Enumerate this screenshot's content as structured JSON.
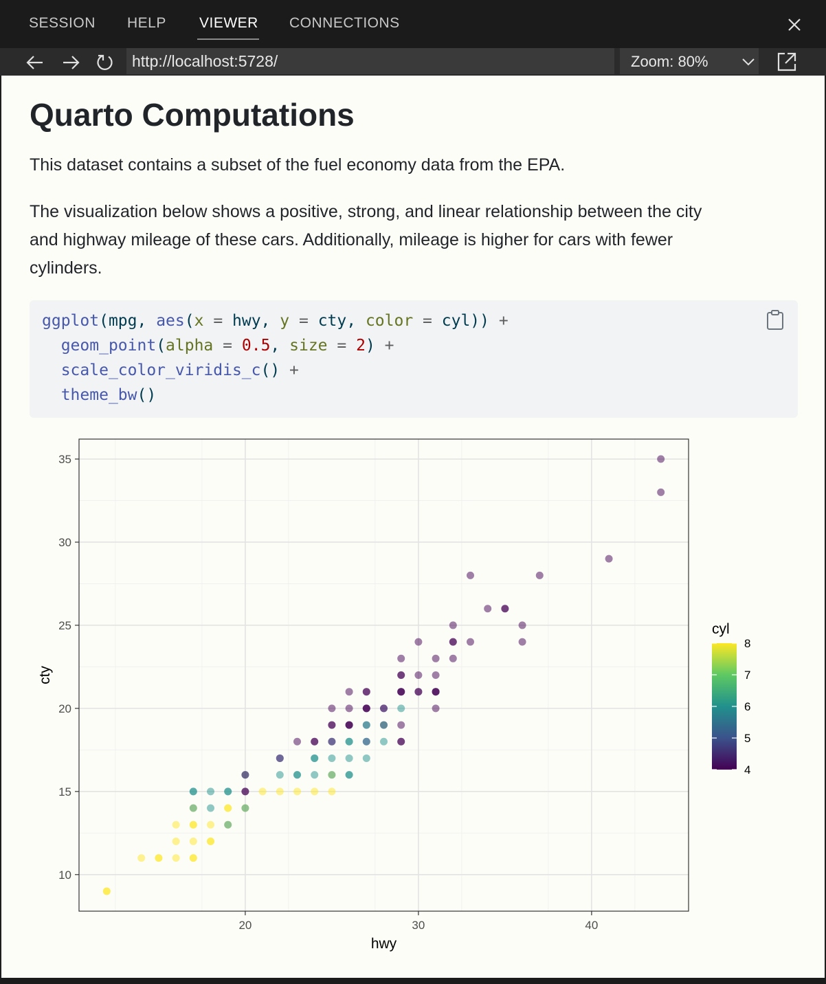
{
  "tabs": [
    {
      "label": "SESSION",
      "active": false
    },
    {
      "label": "HELP",
      "active": false
    },
    {
      "label": "VIEWER",
      "active": true
    },
    {
      "label": "CONNECTIONS",
      "active": false
    }
  ],
  "toolbar": {
    "url": "http://localhost:5728/",
    "zoom": "Zoom: 80%"
  },
  "page": {
    "title": "Quarto Computations",
    "para1": "This dataset contains a subset of the fuel economy data from the EPA.",
    "para2_lines": [
      "The visualization below shows a positive, strong, and linear relationship between the city",
      "and highway mileage of these cars. Additionally, mileage is higher for cars with fewer",
      "cylinders."
    ]
  },
  "code_lines": [
    "ggplot(mpg, aes(x = hwy, y = cty, color = cyl)) +",
    "  geom_point(alpha = 0.5, size = 2) +",
    "  scale_color_viridis_c() +",
    "  theme_bw()"
  ],
  "icons": {
    "close": "close-icon",
    "back": "arrow-left-icon",
    "forward": "arrow-right-icon",
    "refresh": "refresh-icon",
    "zoom_chevron": "chevron-down-icon",
    "popout": "external-link-icon",
    "copy": "clipboard-icon"
  },
  "chart_data": {
    "type": "scatter",
    "xlabel": "hwy",
    "ylabel": "cty",
    "xlim": [
      10.4,
      45.6
    ],
    "ylim": [
      7.8,
      36.2
    ],
    "x_ticks": [
      20,
      30,
      40
    ],
    "y_ticks": [
      10,
      15,
      20,
      25,
      30,
      35
    ],
    "grid": true,
    "legend": {
      "title": "cyl",
      "type": "colorbar",
      "palette": "viridis",
      "ticks": [
        4,
        5,
        6,
        7,
        8
      ],
      "position": "right"
    },
    "points": [
      {
        "x": 44,
        "y": 35,
        "cyl": 4
      },
      {
        "x": 44,
        "y": 33,
        "cyl": 4
      },
      {
        "x": 41,
        "y": 29,
        "cyl": 4
      },
      {
        "x": 33,
        "y": 28,
        "cyl": 4
      },
      {
        "x": 37,
        "y": 28,
        "cyl": 4
      },
      {
        "x": 34,
        "y": 26,
        "cyl": 4
      },
      {
        "x": 35,
        "y": 26,
        "cyl": 4
      },
      {
        "x": 35,
        "y": 26,
        "cyl": 4
      },
      {
        "x": 32,
        "y": 25,
        "cyl": 4
      },
      {
        "x": 36,
        "y": 25,
        "cyl": 4
      },
      {
        "x": 30,
        "y": 24,
        "cyl": 4
      },
      {
        "x": 32,
        "y": 24,
        "cyl": 4
      },
      {
        "x": 32,
        "y": 24,
        "cyl": 4
      },
      {
        "x": 33,
        "y": 24,
        "cyl": 4
      },
      {
        "x": 36,
        "y": 24,
        "cyl": 4
      },
      {
        "x": 29,
        "y": 23,
        "cyl": 4
      },
      {
        "x": 31,
        "y": 23,
        "cyl": 4
      },
      {
        "x": 32,
        "y": 23,
        "cyl": 4
      },
      {
        "x": 29,
        "y": 22,
        "cyl": 4
      },
      {
        "x": 29,
        "y": 22,
        "cyl": 4
      },
      {
        "x": 30,
        "y": 22,
        "cyl": 4
      },
      {
        "x": 31,
        "y": 22,
        "cyl": 4
      },
      {
        "x": 26,
        "y": 21,
        "cyl": 4
      },
      {
        "x": 27,
        "y": 21,
        "cyl": 4
      },
      {
        "x": 27,
        "y": 21,
        "cyl": 4
      },
      {
        "x": 29,
        "y": 21,
        "cyl": 4
      },
      {
        "x": 29,
        "y": 21,
        "cyl": 4
      },
      {
        "x": 29,
        "y": 21,
        "cyl": 4
      },
      {
        "x": 30,
        "y": 21,
        "cyl": 4
      },
      {
        "x": 30,
        "y": 21,
        "cyl": 4
      },
      {
        "x": 31,
        "y": 21,
        "cyl": 4
      },
      {
        "x": 31,
        "y": 21,
        "cyl": 4
      },
      {
        "x": 31,
        "y": 21,
        "cyl": 4
      },
      {
        "x": 25,
        "y": 20,
        "cyl": 4
      },
      {
        "x": 26,
        "y": 20,
        "cyl": 4
      },
      {
        "x": 27,
        "y": 20,
        "cyl": 4
      },
      {
        "x": 27,
        "y": 20,
        "cyl": 4
      },
      {
        "x": 27,
        "y": 20,
        "cyl": 4
      },
      {
        "x": 28,
        "y": 20,
        "cyl": 5
      },
      {
        "x": 28,
        "y": 20,
        "cyl": 4
      },
      {
        "x": 29,
        "y": 20,
        "cyl": 6
      },
      {
        "x": 31,
        "y": 20,
        "cyl": 4
      },
      {
        "x": 25,
        "y": 19,
        "cyl": 4
      },
      {
        "x": 25,
        "y": 19,
        "cyl": 4
      },
      {
        "x": 26,
        "y": 19,
        "cyl": 4
      },
      {
        "x": 26,
        "y": 19,
        "cyl": 4
      },
      {
        "x": 26,
        "y": 19,
        "cyl": 4
      },
      {
        "x": 27,
        "y": 19,
        "cyl": 5
      },
      {
        "x": 27,
        "y": 19,
        "cyl": 6
      },
      {
        "x": 28,
        "y": 19,
        "cyl": 4
      },
      {
        "x": 28,
        "y": 19,
        "cyl": 6
      },
      {
        "x": 29,
        "y": 19,
        "cyl": 4
      },
      {
        "x": 23,
        "y": 18,
        "cyl": 4
      },
      {
        "x": 24,
        "y": 18,
        "cyl": 4
      },
      {
        "x": 24,
        "y": 18,
        "cyl": 4
      },
      {
        "x": 25,
        "y": 18,
        "cyl": 4
      },
      {
        "x": 25,
        "y": 18,
        "cyl": 5
      },
      {
        "x": 26,
        "y": 18,
        "cyl": 6
      },
      {
        "x": 26,
        "y": 18,
        "cyl": 6
      },
      {
        "x": 27,
        "y": 18,
        "cyl": 6
      },
      {
        "x": 27,
        "y": 18,
        "cyl": 5
      },
      {
        "x": 28,
        "y": 18,
        "cyl": 6
      },
      {
        "x": 29,
        "y": 18,
        "cyl": 4
      },
      {
        "x": 29,
        "y": 18,
        "cyl": 4
      },
      {
        "x": 22,
        "y": 17,
        "cyl": 4
      },
      {
        "x": 22,
        "y": 17,
        "cyl": 5
      },
      {
        "x": 24,
        "y": 17,
        "cyl": 6
      },
      {
        "x": 24,
        "y": 17,
        "cyl": 6
      },
      {
        "x": 25,
        "y": 17,
        "cyl": 6
      },
      {
        "x": 26,
        "y": 17,
        "cyl": 6
      },
      {
        "x": 27,
        "y": 17,
        "cyl": 6
      },
      {
        "x": 20,
        "y": 16,
        "cyl": 6
      },
      {
        "x": 20,
        "y": 16,
        "cyl": 4
      },
      {
        "x": 22,
        "y": 16,
        "cyl": 6
      },
      {
        "x": 23,
        "y": 16,
        "cyl": 6
      },
      {
        "x": 23,
        "y": 16,
        "cyl": 6
      },
      {
        "x": 24,
        "y": 16,
        "cyl": 6
      },
      {
        "x": 25,
        "y": 16,
        "cyl": 8
      },
      {
        "x": 25,
        "y": 16,
        "cyl": 6
      },
      {
        "x": 26,
        "y": 16,
        "cyl": 6
      },
      {
        "x": 26,
        "y": 16,
        "cyl": 6
      },
      {
        "x": 17,
        "y": 15,
        "cyl": 6
      },
      {
        "x": 17,
        "y": 15,
        "cyl": 6
      },
      {
        "x": 18,
        "y": 15,
        "cyl": 6
      },
      {
        "x": 19,
        "y": 15,
        "cyl": 6
      },
      {
        "x": 19,
        "y": 15,
        "cyl": 6
      },
      {
        "x": 20,
        "y": 15,
        "cyl": 4
      },
      {
        "x": 20,
        "y": 15,
        "cyl": 4
      },
      {
        "x": 21,
        "y": 15,
        "cyl": 8
      },
      {
        "x": 22,
        "y": 15,
        "cyl": 8
      },
      {
        "x": 23,
        "y": 15,
        "cyl": 8
      },
      {
        "x": 24,
        "y": 15,
        "cyl": 8
      },
      {
        "x": 25,
        "y": 15,
        "cyl": 8
      },
      {
        "x": 17,
        "y": 14,
        "cyl": 8
      },
      {
        "x": 17,
        "y": 14,
        "cyl": 6
      },
      {
        "x": 18,
        "y": 14,
        "cyl": 6
      },
      {
        "x": 19,
        "y": 14,
        "cyl": 8
      },
      {
        "x": 19,
        "y": 14,
        "cyl": 8
      },
      {
        "x": 20,
        "y": 14,
        "cyl": 8
      },
      {
        "x": 20,
        "y": 14,
        "cyl": 6
      },
      {
        "x": 16,
        "y": 13,
        "cyl": 8
      },
      {
        "x": 17,
        "y": 13,
        "cyl": 8
      },
      {
        "x": 17,
        "y": 13,
        "cyl": 8
      },
      {
        "x": 18,
        "y": 13,
        "cyl": 8
      },
      {
        "x": 19,
        "y": 13,
        "cyl": 8
      },
      {
        "x": 19,
        "y": 13,
        "cyl": 6
      },
      {
        "x": 16,
        "y": 12,
        "cyl": 8
      },
      {
        "x": 17,
        "y": 12,
        "cyl": 8
      },
      {
        "x": 18,
        "y": 12,
        "cyl": 8
      },
      {
        "x": 18,
        "y": 12,
        "cyl": 8
      },
      {
        "x": 14,
        "y": 11,
        "cyl": 8
      },
      {
        "x": 15,
        "y": 11,
        "cyl": 8
      },
      {
        "x": 15,
        "y": 11,
        "cyl": 8
      },
      {
        "x": 16,
        "y": 11,
        "cyl": 8
      },
      {
        "x": 17,
        "y": 11,
        "cyl": 8
      },
      {
        "x": 17,
        "y": 11,
        "cyl": 8
      },
      {
        "x": 12,
        "y": 9,
        "cyl": 8
      },
      {
        "x": 12,
        "y": 9,
        "cyl": 8
      }
    ]
  }
}
